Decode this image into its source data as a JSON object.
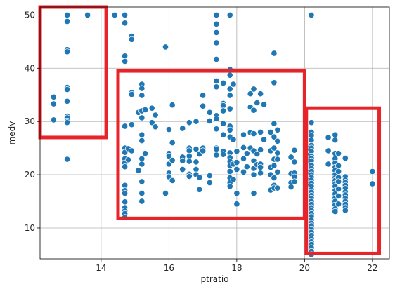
{
  "chart_data": {
    "type": "scatter",
    "title": "",
    "xlabel": "ptratio",
    "ylabel": "medv",
    "xlim": [
      12.2,
      22.5
    ],
    "ylim": [
      4.2,
      51.5
    ],
    "xticks": [
      14,
      16,
      18,
      20,
      22
    ],
    "yticks": [
      10,
      20,
      30,
      40,
      50
    ],
    "grid": true,
    "point_color": "#1f77b4",
    "highlight_color": "#e8242b",
    "highlight_boxes": [
      {
        "x": [
          12.2,
          14.15
        ],
        "y": [
          27.0,
          51.5
        ]
      },
      {
        "x": [
          14.5,
          20.0
        ],
        "y": [
          11.8,
          39.5
        ]
      },
      {
        "x": [
          20.05,
          22.2
        ],
        "y": [
          5.2,
          32.5
        ]
      }
    ],
    "points": [
      [
        12.6,
        34.6
      ],
      [
        12.6,
        33.3
      ],
      [
        12.6,
        30.3
      ],
      [
        13.0,
        50.0
      ],
      [
        13.0,
        48.8
      ],
      [
        13.0,
        43.5
      ],
      [
        13.0,
        43.1
      ],
      [
        13.0,
        36.4
      ],
      [
        13.0,
        36.0
      ],
      [
        13.0,
        33.8
      ],
      [
        13.0,
        31.0
      ],
      [
        13.0,
        30.7
      ],
      [
        13.0,
        30.1
      ],
      [
        13.0,
        29.8
      ],
      [
        13.0,
        22.9
      ],
      [
        13.6,
        50.0
      ],
      [
        14.4,
        50.0
      ],
      [
        14.7,
        50.0
      ],
      [
        14.7,
        48.5
      ],
      [
        14.7,
        42.3
      ],
      [
        14.7,
        41.3
      ],
      [
        14.7,
        29.1
      ],
      [
        14.7,
        25.0
      ],
      [
        14.7,
        24.2
      ],
      [
        14.7,
        23.0
      ],
      [
        14.7,
        22.2
      ],
      [
        14.7,
        21.5
      ],
      [
        14.7,
        18.0
      ],
      [
        14.7,
        17.0
      ],
      [
        14.7,
        16.5
      ],
      [
        14.7,
        14.9
      ],
      [
        14.7,
        13.8
      ],
      [
        14.7,
        13.2
      ],
      [
        14.7,
        12.7
      ],
      [
        14.7,
        12.0
      ],
      [
        14.8,
        24.9
      ],
      [
        14.8,
        22.8
      ],
      [
        14.9,
        46.0
      ],
      [
        14.9,
        45.4
      ],
      [
        14.9,
        35.4
      ],
      [
        14.9,
        35.1
      ],
      [
        14.9,
        29.4
      ],
      [
        14.9,
        24.5
      ],
      [
        15.1,
        31.7
      ],
      [
        15.1,
        20.8
      ],
      [
        15.2,
        37.0
      ],
      [
        15.2,
        36.2
      ],
      [
        15.2,
        34.9
      ],
      [
        15.2,
        32.0
      ],
      [
        15.2,
        30.7
      ],
      [
        15.2,
        27.5
      ],
      [
        15.2,
        26.4
      ],
      [
        15.2,
        23.0
      ],
      [
        15.2,
        22.0
      ],
      [
        15.2,
        18.7
      ],
      [
        15.2,
        16.5
      ],
      [
        15.2,
        15.0
      ],
      [
        15.3,
        32.2
      ],
      [
        15.3,
        24.0
      ],
      [
        15.5,
        32.5
      ],
      [
        15.5,
        29.8
      ],
      [
        15.6,
        31.2
      ],
      [
        15.6,
        29.0
      ],
      [
        15.9,
        44.0
      ],
      [
        15.9,
        16.5
      ],
      [
        16.0,
        28.5
      ],
      [
        16.0,
        24.0
      ],
      [
        16.0,
        23.5
      ],
      [
        16.0,
        22.0
      ],
      [
        16.0,
        20.3
      ],
      [
        16.0,
        19.6
      ],
      [
        16.1,
        33.1
      ],
      [
        16.1,
        26.0
      ],
      [
        16.1,
        22.7
      ],
      [
        16.1,
        18.9
      ],
      [
        16.4,
        28.7
      ],
      [
        16.4,
        23.3
      ],
      [
        16.4,
        22.6
      ],
      [
        16.4,
        21.0
      ],
      [
        16.6,
        29.8
      ],
      [
        16.6,
        25.0
      ],
      [
        16.6,
        24.5
      ],
      [
        16.6,
        23.5
      ],
      [
        16.6,
        22.5
      ],
      [
        16.6,
        20.1
      ],
      [
        16.6,
        19.7
      ],
      [
        16.8,
        30.0
      ],
      [
        16.8,
        24.8
      ],
      [
        16.8,
        22.4
      ],
      [
        16.8,
        21.0
      ],
      [
        16.8,
        20.0
      ],
      [
        16.9,
        23.9
      ],
      [
        16.9,
        19.5
      ],
      [
        16.9,
        17.2
      ],
      [
        17.0,
        34.9
      ],
      [
        17.0,
        32.9
      ],
      [
        17.0,
        25.0
      ],
      [
        17.0,
        24.5
      ],
      [
        17.2,
        31.7
      ],
      [
        17.2,
        30.1
      ],
      [
        17.2,
        19.8
      ],
      [
        17.2,
        18.5
      ],
      [
        17.4,
        50.0
      ],
      [
        17.4,
        48.3
      ],
      [
        17.4,
        46.7
      ],
      [
        17.4,
        44.8
      ],
      [
        17.4,
        41.7
      ],
      [
        17.4,
        37.6
      ],
      [
        17.4,
        36.5
      ],
      [
        17.4,
        31.1
      ],
      [
        17.4,
        30.5
      ],
      [
        17.4,
        28.6
      ],
      [
        17.4,
        25.0
      ],
      [
        17.4,
        24.8
      ],
      [
        17.4,
        23.7
      ],
      [
        17.6,
        37.2
      ],
      [
        17.6,
        33.4
      ],
      [
        17.6,
        33.0
      ],
      [
        17.6,
        32.0
      ],
      [
        17.6,
        29.6
      ],
      [
        17.6,
        27.5
      ],
      [
        17.6,
        24.4
      ],
      [
        17.6,
        23.8
      ],
      [
        17.8,
        50.0
      ],
      [
        17.8,
        39.8
      ],
      [
        17.8,
        38.7
      ],
      [
        17.8,
        36.1
      ],
      [
        17.8,
        34.9
      ],
      [
        17.8,
        32.4
      ],
      [
        17.8,
        29.1
      ],
      [
        17.8,
        28.4
      ],
      [
        17.8,
        27.1
      ],
      [
        17.8,
        24.1
      ],
      [
        17.8,
        23.2
      ],
      [
        17.8,
        22.5
      ],
      [
        17.8,
        21.7
      ],
      [
        17.8,
        20.6
      ],
      [
        17.8,
        19.4
      ],
      [
        17.8,
        18.5
      ],
      [
        17.8,
        17.8
      ],
      [
        17.9,
        37.0
      ],
      [
        17.9,
        26.6
      ],
      [
        17.9,
        22.0
      ],
      [
        17.9,
        19.1
      ],
      [
        18.0,
        24.4
      ],
      [
        18.0,
        22.3
      ],
      [
        18.0,
        21.0
      ],
      [
        18.0,
        16.5
      ],
      [
        18.0,
        14.5
      ],
      [
        18.2,
        27.5
      ],
      [
        18.2,
        25.1
      ],
      [
        18.2,
        23.0
      ],
      [
        18.2,
        20.5
      ],
      [
        18.3,
        24.0
      ],
      [
        18.3,
        21.5
      ],
      [
        18.4,
        35.2
      ],
      [
        18.4,
        32.7
      ],
      [
        18.4,
        27.9
      ],
      [
        18.4,
        25.0
      ],
      [
        18.5,
        36.1
      ],
      [
        18.5,
        32.1
      ],
      [
        18.5,
        27.7
      ],
      [
        18.5,
        24.5
      ],
      [
        18.5,
        22.6
      ],
      [
        18.5,
        21.2
      ],
      [
        18.5,
        20.0
      ],
      [
        18.5,
        16.5
      ],
      [
        18.6,
        33.5
      ],
      [
        18.6,
        23.9
      ],
      [
        18.6,
        21.9
      ],
      [
        18.7,
        35.2
      ],
      [
        18.7,
        28.0
      ],
      [
        18.7,
        24.7
      ],
      [
        18.7,
        22.0
      ],
      [
        18.7,
        21.4
      ],
      [
        18.7,
        20.3
      ],
      [
        18.8,
        33.2
      ],
      [
        18.8,
        26.6
      ],
      [
        19.0,
        28.0
      ],
      [
        19.0,
        24.5
      ],
      [
        19.0,
        21.4
      ],
      [
        19.0,
        20.0
      ],
      [
        19.0,
        17.1
      ],
      [
        19.1,
        42.8
      ],
      [
        19.1,
        37.3
      ],
      [
        19.1,
        29.6
      ],
      [
        19.1,
        27.1
      ],
      [
        19.1,
        25.0
      ],
      [
        19.1,
        22.9
      ],
      [
        19.1,
        21.7
      ],
      [
        19.1,
        19.4
      ],
      [
        19.1,
        18.0
      ],
      [
        19.1,
        17.5
      ],
      [
        19.2,
        28.4
      ],
      [
        19.2,
        26.3
      ],
      [
        19.2,
        24.1
      ],
      [
        19.2,
        22.9
      ],
      [
        19.2,
        20.5
      ],
      [
        19.2,
        17.5
      ],
      [
        19.6,
        23.3
      ],
      [
        19.6,
        20.2
      ],
      [
        19.6,
        18.5
      ],
      [
        19.6,
        17.7
      ],
      [
        19.7,
        24.6
      ],
      [
        19.7,
        22.4
      ],
      [
        19.7,
        20.3
      ],
      [
        19.7,
        19.6
      ],
      [
        19.7,
        18.7
      ],
      [
        20.1,
        25.0
      ],
      [
        20.1,
        23.6
      ],
      [
        20.1,
        22.8
      ],
      [
        20.1,
        20.4
      ],
      [
        20.1,
        18.9
      ],
      [
        20.1,
        18.2
      ],
      [
        20.2,
        50.0
      ],
      [
        20.2,
        29.8
      ],
      [
        20.2,
        28.0
      ],
      [
        20.2,
        27.4
      ],
      [
        20.2,
        26.5
      ],
      [
        20.2,
        25.5
      ],
      [
        20.2,
        25.0
      ],
      [
        20.2,
        24.4
      ],
      [
        20.2,
        23.5
      ],
      [
        20.2,
        23.1
      ],
      [
        20.2,
        22.6
      ],
      [
        20.2,
        21.8
      ],
      [
        20.2,
        21.2
      ],
      [
        20.2,
        20.6
      ],
      [
        20.2,
        20.0
      ],
      [
        20.2,
        19.5
      ],
      [
        20.2,
        19.0
      ],
      [
        20.2,
        18.4
      ],
      [
        20.2,
        17.8
      ],
      [
        20.2,
        17.2
      ],
      [
        20.2,
        16.7
      ],
      [
        20.2,
        16.1
      ],
      [
        20.2,
        15.6
      ],
      [
        20.2,
        15.0
      ],
      [
        20.2,
        14.4
      ],
      [
        20.2,
        13.8
      ],
      [
        20.2,
        13.3
      ],
      [
        20.2,
        12.7
      ],
      [
        20.2,
        12.1
      ],
      [
        20.2,
        11.5
      ],
      [
        20.2,
        10.9
      ],
      [
        20.2,
        10.4
      ],
      [
        20.2,
        9.8
      ],
      [
        20.2,
        9.2
      ],
      [
        20.2,
        8.6
      ],
      [
        20.2,
        8.0
      ],
      [
        20.2,
        7.4
      ],
      [
        20.2,
        6.9
      ],
      [
        20.2,
        6.3
      ],
      [
        20.2,
        5.6
      ],
      [
        20.2,
        5.0
      ],
      [
        20.7,
        27.0
      ],
      [
        20.7,
        24.5
      ],
      [
        20.7,
        22.0
      ],
      [
        20.9,
        27.5
      ],
      [
        20.9,
        26.5
      ],
      [
        20.9,
        24.0
      ],
      [
        20.9,
        23.0
      ],
      [
        20.9,
        22.2
      ],
      [
        20.9,
        21.4
      ],
      [
        20.9,
        20.8
      ],
      [
        20.9,
        20.0
      ],
      [
        20.9,
        19.4
      ],
      [
        20.9,
        18.9
      ],
      [
        20.9,
        18.3
      ],
      [
        20.9,
        17.8
      ],
      [
        20.9,
        17.0
      ],
      [
        20.9,
        16.4
      ],
      [
        20.9,
        15.6
      ],
      [
        20.9,
        15.0
      ],
      [
        20.9,
        14.3
      ],
      [
        20.9,
        13.6
      ],
      [
        20.9,
        13.1
      ],
      [
        21.0,
        24.0
      ],
      [
        21.0,
        21.7
      ],
      [
        21.0,
        20.6
      ],
      [
        21.0,
        19.5
      ],
      [
        21.0,
        18.7
      ],
      [
        21.0,
        17.3
      ],
      [
        21.0,
        16.0
      ],
      [
        21.0,
        14.5
      ],
      [
        21.2,
        23.1
      ],
      [
        21.2,
        19.6
      ],
      [
        21.2,
        19.0
      ],
      [
        21.2,
        18.6
      ],
      [
        21.2,
        18.0
      ],
      [
        21.2,
        17.4
      ],
      [
        21.2,
        16.8
      ],
      [
        21.2,
        16.2
      ],
      [
        21.2,
        15.6
      ],
      [
        21.2,
        15.0
      ],
      [
        21.2,
        14.4
      ],
      [
        21.2,
        13.8
      ],
      [
        21.2,
        13.3
      ],
      [
        22.0,
        20.6
      ],
      [
        22.0,
        18.3
      ]
    ]
  }
}
